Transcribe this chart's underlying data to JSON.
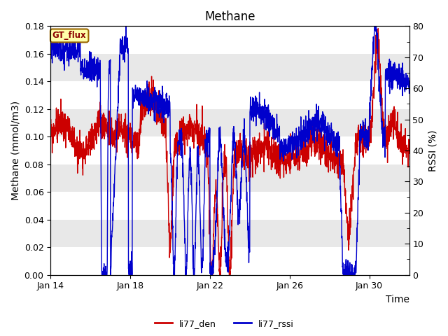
{
  "title": "Methane",
  "ylabel_left": "Methane (mmol/m3)",
  "ylabel_right": "RSSI (%)",
  "xlabel": "Time",
  "ylim_left": [
    0.0,
    0.18
  ],
  "ylim_right": [
    0,
    80
  ],
  "legend_labels": [
    "li77_den",
    "li77_rssi"
  ],
  "legend_colors": [
    "#cc0000",
    "#0000cc"
  ],
  "gt_flux_label": "GT_flux",
  "gt_flux_bg": "#ffffaa",
  "gt_flux_border": "#996600",
  "background_color": "#ffffff",
  "band_color": "#e8e8e8",
  "title_fontsize": 12,
  "axis_fontsize": 10,
  "tick_fontsize": 9,
  "line_width": 1.0,
  "x_ticks_days": [
    14,
    18,
    22,
    26,
    30
  ],
  "x_tick_labels": [
    "Jan 14",
    "Jan 18",
    "Jan 22",
    "Jan 26",
    "Jan 30"
  ],
  "band_intervals": [
    [
      0.02,
      0.04
    ],
    [
      0.06,
      0.08
    ],
    [
      0.1,
      0.12
    ],
    [
      0.14,
      0.16
    ]
  ]
}
